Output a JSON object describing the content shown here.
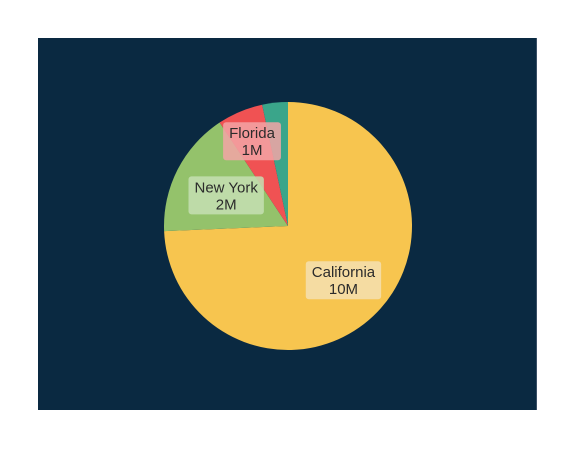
{
  "chart_data": {
    "type": "pie",
    "title": "",
    "start_angle_deg": 0,
    "direction": "clockwise",
    "slices": [
      {
        "label": "California",
        "value_label": "10M",
        "value": 10,
        "color": "#f7c54f",
        "label_box_color": "#f5dfb0"
      },
      {
        "label": "New York",
        "value_label": "2M",
        "value": 2.2,
        "color": "#94c26b",
        "label_box_color": "#c6dfb3"
      },
      {
        "label": "Florida",
        "value_label": "1M",
        "value": 0.8,
        "color": "#f05253",
        "label_box_color": "#f3a4a6"
      },
      {
        "label": "",
        "value_label": "",
        "value": 0.45,
        "color": "#3aa58a",
        "label_box_color": ""
      }
    ]
  },
  "colors": {
    "panel_background": "#0a2941",
    "page_background": "#ffffff"
  }
}
